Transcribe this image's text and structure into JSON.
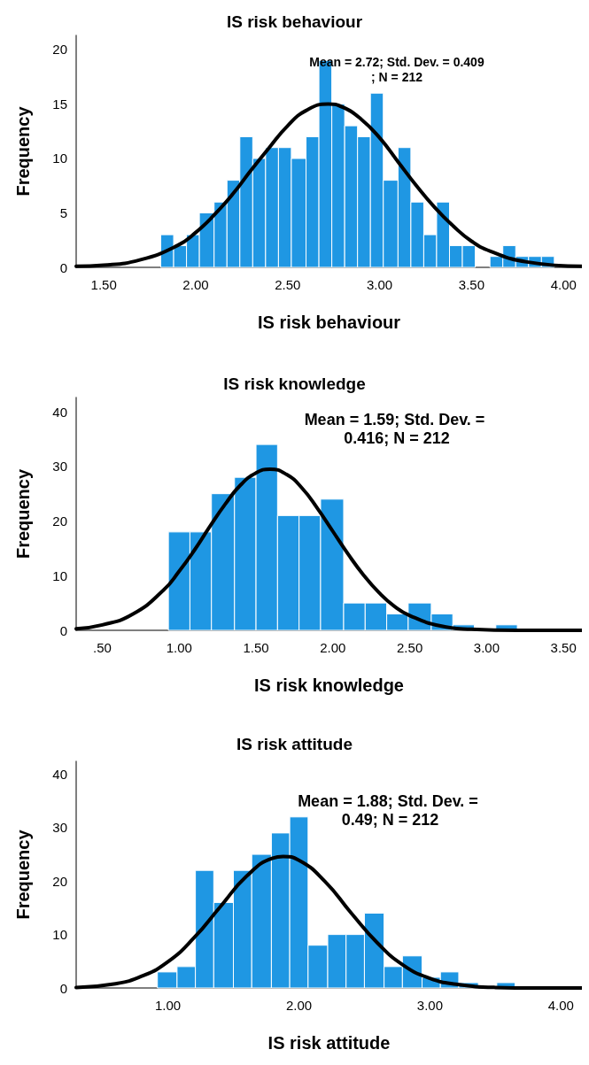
{
  "chart_data": [
    {
      "type": "histogram",
      "title": "IS risk behaviour",
      "xlabel": "IS risk behaviour",
      "ylabel": "Frequency",
      "color": "#1f97e3",
      "marker": "none",
      "grid": false,
      "bins": [
        1.81,
        1.88,
        1.95,
        2.02,
        2.1,
        2.17,
        2.24,
        2.31,
        2.38,
        2.45,
        2.52,
        2.6,
        2.67,
        2.74,
        2.81,
        2.88,
        2.95,
        3.02,
        3.1,
        3.17,
        3.24,
        3.31,
        3.38,
        3.45,
        3.52,
        3.6,
        3.67,
        3.74,
        3.81,
        3.88,
        3.95
      ],
      "values": [
        3,
        2,
        3,
        5,
        6,
        8,
        12,
        10,
        11,
        11,
        10,
        12,
        19,
        15,
        13,
        12,
        16,
        8,
        11,
        6,
        3,
        6,
        2,
        2,
        0,
        1,
        2,
        1,
        1,
        1
      ],
      "series": [
        {
          "type": "line",
          "color": "#000000",
          "x": [
            1.35,
            1.5,
            1.7,
            1.9,
            2.0,
            2.1,
            2.2,
            2.3,
            2.4,
            2.5,
            2.6,
            2.72,
            2.8,
            2.9,
            3.0,
            3.1,
            3.2,
            3.3,
            3.4,
            3.5,
            3.6,
            3.8,
            4.1
          ],
          "values": [
            0.1,
            0.2,
            0.7,
            2.0,
            3.2,
            4.8,
            6.7,
            8.9,
            11.0,
            13.0,
            14.4,
            15.0,
            14.7,
            13.6,
            11.9,
            9.7,
            7.5,
            5.5,
            3.8,
            2.4,
            1.5,
            0.5,
            0.1
          ]
        }
      ],
      "xlim": [
        1.35,
        4.1
      ],
      "xticks": [
        {
          "value": 1.5,
          "label": "1.50"
        },
        {
          "value": 2,
          "label": "2.00"
        },
        {
          "value": 2.5,
          "label": "2.50"
        },
        {
          "value": 3,
          "label": "3.00"
        },
        {
          "value": 3.5,
          "label": "3.50"
        },
        {
          "value": 4,
          "label": "4.00"
        }
      ],
      "ylim": [
        0,
        21.3
      ],
      "yticks": [
        0,
        5,
        10,
        15,
        20
      ],
      "annotations": [
        "Mean = 2.72; Std. Dev. = 0.409; N = 212"
      ]
    },
    {
      "type": "histogram",
      "title": "IS risk knowledge",
      "xlabel": "IS risk knowledge",
      "ylabel": "Frequency",
      "color": "#1f97e3",
      "marker": "none",
      "grid": false,
      "bins": [
        0.93,
        1.07,
        1.21,
        1.36,
        1.5,
        1.64,
        1.78,
        1.92,
        2.07,
        2.21,
        2.35,
        2.49,
        2.64,
        2.78,
        2.92,
        3.06,
        3.2
      ],
      "values": [
        18,
        18,
        25,
        28,
        34,
        21,
        21,
        24,
        5,
        5,
        3,
        5,
        3,
        1,
        0,
        1
      ],
      "series": [
        {
          "type": "line",
          "color": "#000000",
          "x": [
            0.33,
            0.5,
            0.7,
            0.9,
            1.0,
            1.1,
            1.2,
            1.3,
            1.4,
            1.5,
            1.59,
            1.7,
            1.8,
            1.9,
            2.0,
            2.1,
            2.2,
            2.3,
            2.4,
            2.5,
            2.7,
            2.9,
            3.2,
            3.62
          ],
          "values": [
            0.3,
            1.0,
            3.0,
            7.4,
            10.8,
            14.7,
            19.0,
            23.1,
            26.6,
            28.8,
            29.5,
            28.5,
            26.0,
            22.3,
            18.1,
            13.9,
            10.1,
            6.9,
            4.4,
            2.7,
            0.8,
            0.2,
            0,
            0
          ]
        }
      ],
      "xlim": [
        0.33,
        3.62
      ],
      "xticks": [
        {
          "value": 0.5,
          "label": ".50"
        },
        {
          "value": 1,
          "label": "1.00"
        },
        {
          "value": 1.5,
          "label": "1.50"
        },
        {
          "value": 2,
          "label": "2.00"
        },
        {
          "value": 2.5,
          "label": "2.50"
        },
        {
          "value": 3,
          "label": "3.00"
        },
        {
          "value": 3.5,
          "label": "3.50"
        }
      ],
      "ylim": [
        0,
        42.6
      ],
      "yticks": [
        0,
        10,
        20,
        30,
        40
      ],
      "annotations": [
        "Mean = 1.59; Std. Dev. = 0.416; N = 212"
      ]
    },
    {
      "type": "histogram",
      "title": "IS risk attitude",
      "xlabel": "IS risk attitude",
      "ylabel": "Frequency",
      "color": "#1f97e3",
      "marker": "none",
      "grid": false,
      "bins": [
        0.92,
        1.07,
        1.21,
        1.35,
        1.5,
        1.64,
        1.79,
        1.93,
        2.07,
        2.22,
        2.36,
        2.5,
        2.65,
        2.79,
        2.94,
        3.08,
        3.22,
        3.37,
        3.51,
        3.65
      ],
      "values": [
        3,
        4,
        22,
        16,
        22,
        25,
        29,
        32,
        8,
        10,
        10,
        14,
        4,
        6,
        2,
        3,
        1,
        0,
        1
      ],
      "series": [
        {
          "type": "line",
          "color": "#000000",
          "x": [
            0.3,
            0.6,
            0.8,
            1.0,
            1.2,
            1.4,
            1.6,
            1.8,
            1.88,
            2.0,
            2.2,
            2.4,
            2.6,
            2.8,
            3.0,
            3.2,
            3.5,
            3.8,
            4.16
          ],
          "values": [
            0.1,
            0.8,
            2.2,
            4.9,
            9.4,
            15.2,
            20.9,
            24.3,
            24.6,
            23.9,
            19.9,
            14.0,
            8.4,
            4.2,
            1.8,
            0.7,
            0.1,
            0,
            0
          ]
        }
      ],
      "xlim": [
        0.3,
        4.16
      ],
      "xticks": [
        {
          "value": 1,
          "label": "1.00"
        },
        {
          "value": 2,
          "label": "2.00"
        },
        {
          "value": 3,
          "label": "3.00"
        },
        {
          "value": 4,
          "label": "4.00"
        }
      ],
      "ylim": [
        0,
        42.4
      ],
      "yticks": [
        0,
        10,
        20,
        30,
        40
      ],
      "annotations": [
        "Mean = 1.88; Std. Dev. = 0.49; N = 212"
      ]
    }
  ]
}
